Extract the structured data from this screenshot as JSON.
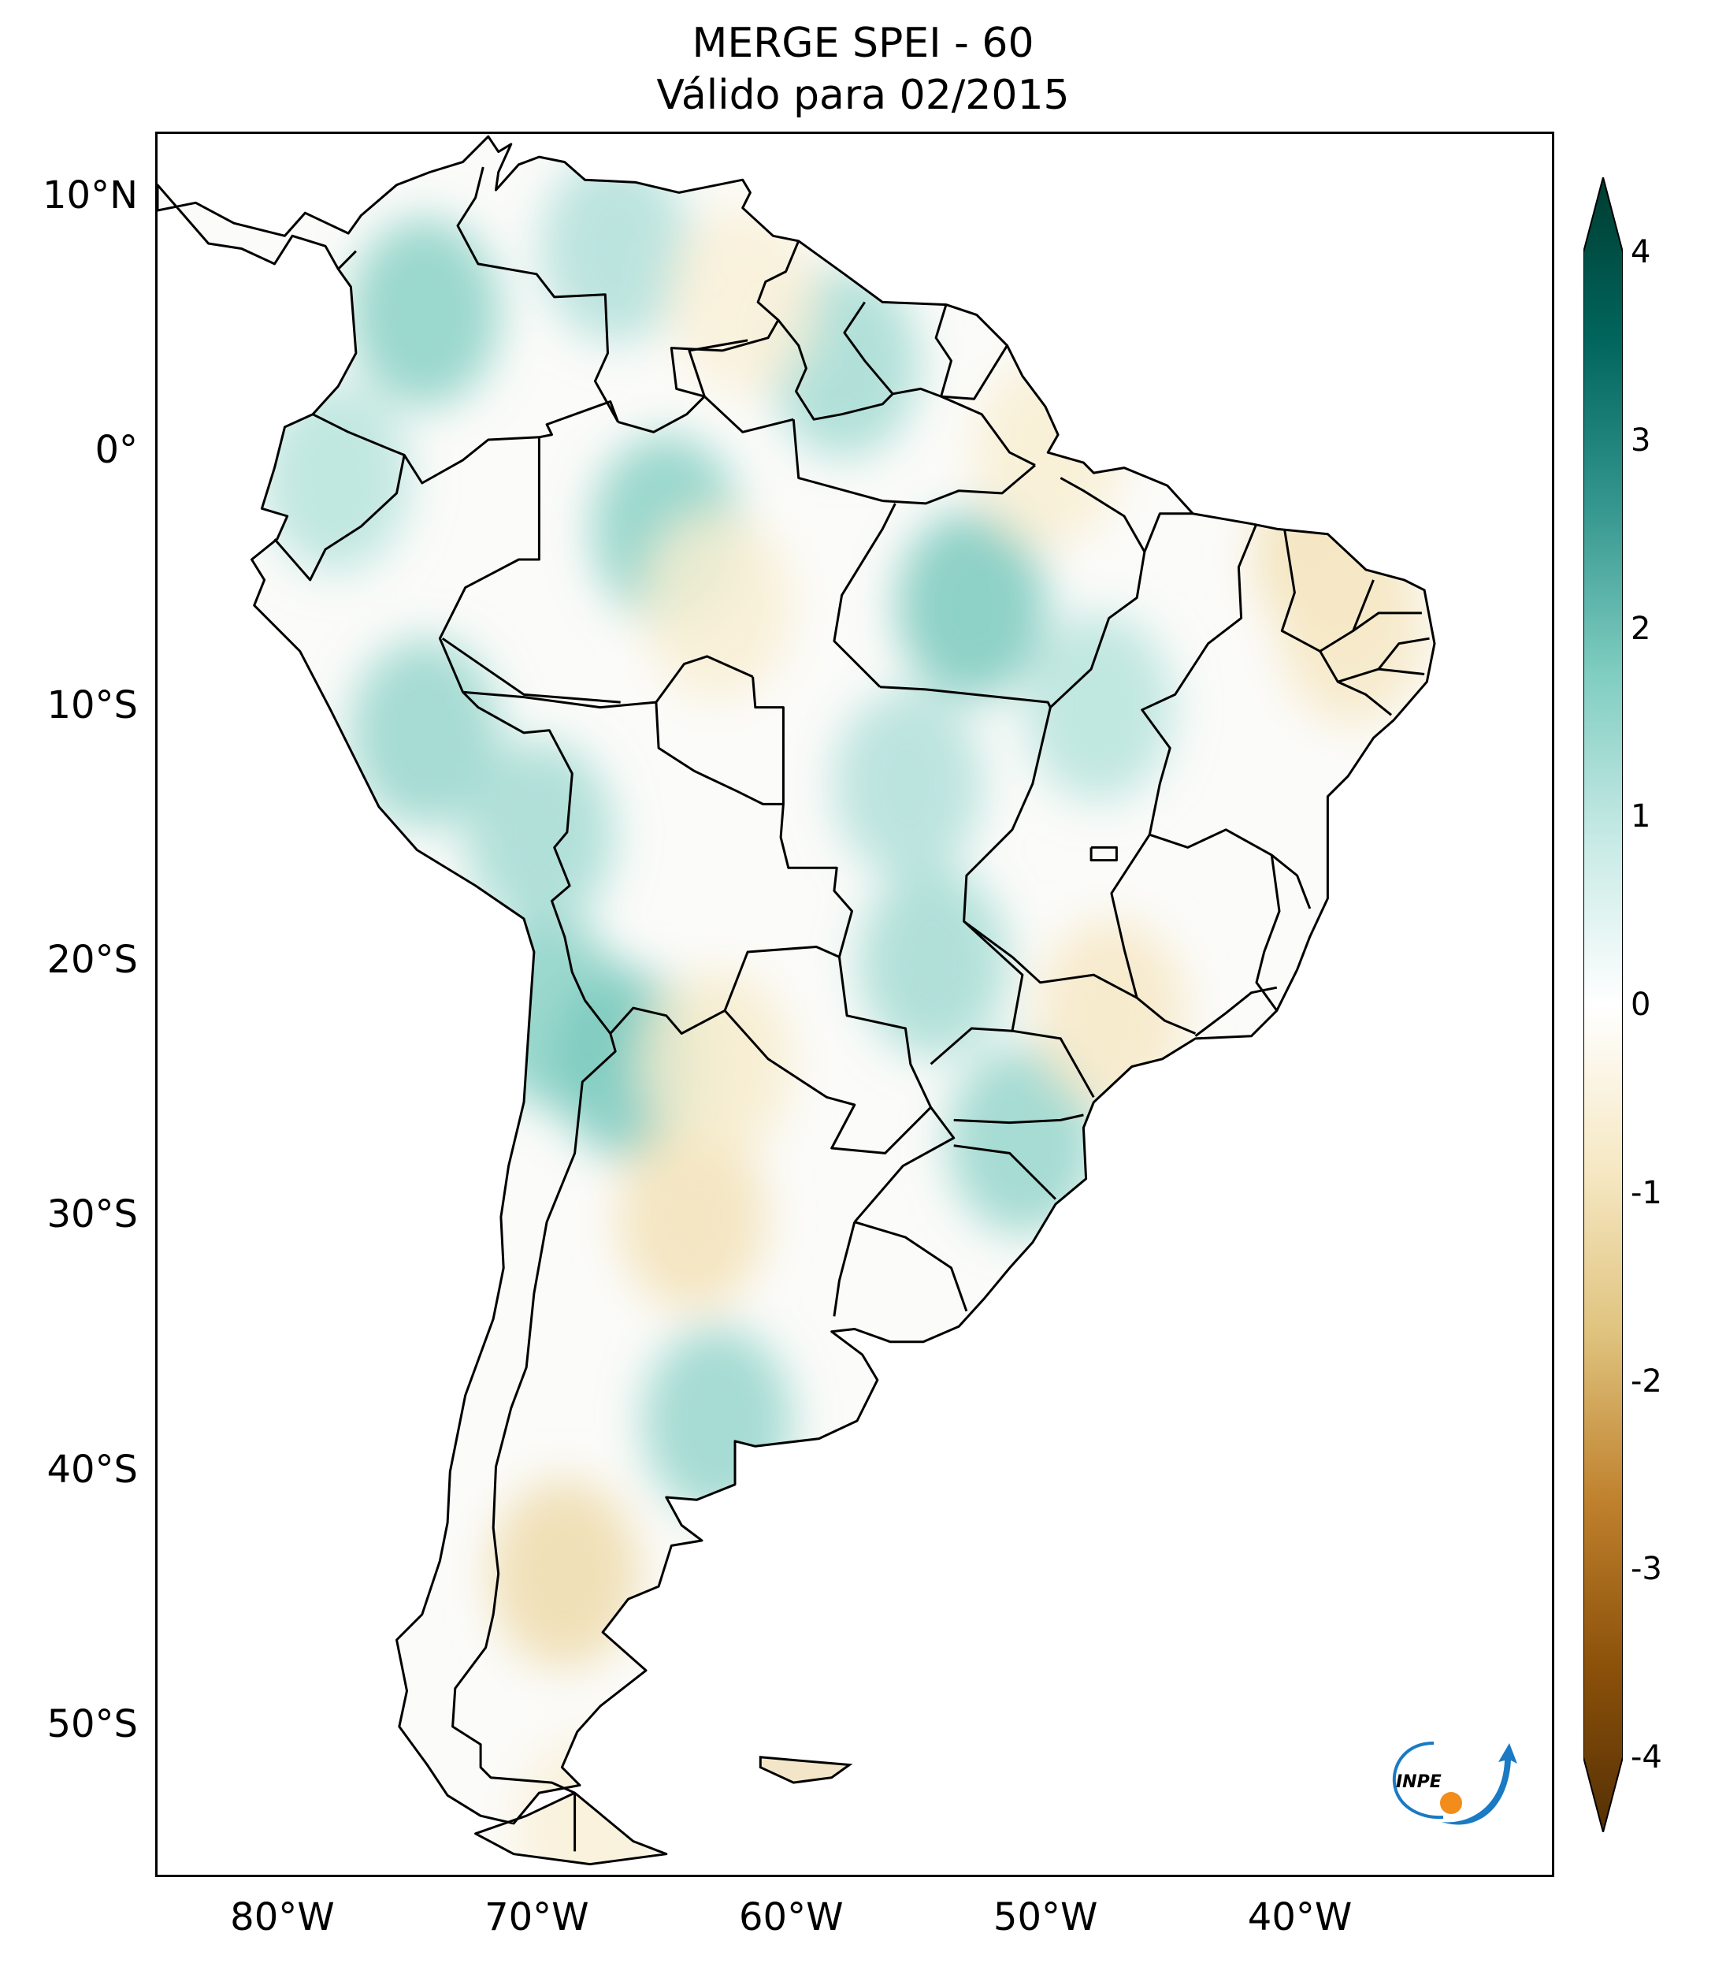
{
  "title": {
    "line1": "MERGE   SPEI - 60",
    "line2": "Válido para 02/2015"
  },
  "map": {
    "region": "South America",
    "projection": "PlateCarree",
    "extent": {
      "lon": [
        -85,
        -30
      ],
      "lat": [
        -56,
        12.5
      ]
    },
    "lat_ticks": [
      {
        "value": 10,
        "label": "10°N"
      },
      {
        "value": 0,
        "label": "0°"
      },
      {
        "value": -10,
        "label": "10°S"
      },
      {
        "value": -20,
        "label": "20°S"
      },
      {
        "value": -30,
        "label": "30°S"
      },
      {
        "value": -40,
        "label": "40°S"
      },
      {
        "value": -50,
        "label": "50°S"
      }
    ],
    "lon_ticks": [
      {
        "value": -80,
        "label": "80°W"
      },
      {
        "value": -70,
        "label": "70°W"
      },
      {
        "value": -60,
        "label": "60°W"
      },
      {
        "value": -50,
        "label": "50°W"
      },
      {
        "value": -40,
        "label": "40°W"
      }
    ],
    "field": "SPEI-60",
    "wet_anomalies": [
      {
        "name": "Colombia Andes",
        "lon": -74.5,
        "lat": 5.5,
        "value": 2.0
      },
      {
        "name": "Venezuela north",
        "lon": -67,
        "lat": 8,
        "value": 1.4
      },
      {
        "name": "Ecuador",
        "lon": -78,
        "lat": -1,
        "value": 1.3
      },
      {
        "name": "Peru central",
        "lon": -74.5,
        "lat": -11,
        "value": 1.8
      },
      {
        "name": "Peru south / Bolivia",
        "lon": -70,
        "lat": -15,
        "value": 1.6
      },
      {
        "name": "Amazonas north",
        "lon": -65,
        "lat": -3,
        "value": 2.0
      },
      {
        "name": "Para central",
        "lon": -53,
        "lat": -6,
        "value": 2.2
      },
      {
        "name": "Guyanas",
        "lon": -58,
        "lat": 3.5,
        "value": 1.6
      },
      {
        "name": "Mato Grosso",
        "lon": -55.5,
        "lat": -13,
        "value": 1.4
      },
      {
        "name": "Chile north / Atacama",
        "lon": -69.5,
        "lat": -22,
        "value": 2.0
      },
      {
        "name": "NW Argentina",
        "lon": -66.5,
        "lat": -24,
        "value": 2.2
      },
      {
        "name": "Mato Grosso do Sul",
        "lon": -54.5,
        "lat": -20,
        "value": 1.6
      },
      {
        "name": "Santa Catarina / Parana",
        "lon": -51,
        "lat": -27,
        "value": 1.8
      },
      {
        "name": "Buenos Aires south",
        "lon": -63,
        "lat": -38,
        "value": 1.8
      },
      {
        "name": "Tocantins",
        "lon": -48,
        "lat": -10,
        "value": 1.3
      }
    ],
    "dry_anomalies": [
      {
        "name": "Northeast Brazil coast",
        "lon": -39,
        "lat": -4,
        "value": -1.2
      },
      {
        "name": "Ceara / Pernambuco",
        "lon": -38,
        "lat": -7,
        "value": -1.0
      },
      {
        "name": "Sao Paulo",
        "lon": -47.5,
        "lat": -22,
        "value": -1.0
      },
      {
        "name": "Central Argentina",
        "lon": -64,
        "lat": -30,
        "value": -1.2
      },
      {
        "name": "Chaco",
        "lon": -63,
        "lat": -24,
        "value": -0.9
      },
      {
        "name": "Patagonia",
        "lon": -69,
        "lat": -44,
        "value": -1.4
      },
      {
        "name": "Amazonas south",
        "lon": -63,
        "lat": -6,
        "value": -0.8
      },
      {
        "name": "Amapa / Para north",
        "lon": -50,
        "lat": 0,
        "value": -0.8
      },
      {
        "name": "Tierra del Fuego",
        "lon": -68,
        "lat": -54,
        "value": -0.7
      },
      {
        "name": "Venezuela south",
        "lon": -62,
        "lat": 6,
        "value": -0.7
      }
    ]
  },
  "colorbar": {
    "label_ticks": [
      "4",
      "3",
      "2",
      "1",
      "0",
      "-1",
      "-2",
      "-3",
      "-4"
    ],
    "min": -4,
    "max": 4,
    "colormap": "BrBG",
    "stops": [
      "#543005",
      "#8c510a",
      "#bf812d",
      "#dfc27d",
      "#f6e8c3",
      "#ffffff",
      "#c7eae5",
      "#80cdc1",
      "#35978f",
      "#01665e",
      "#003c30"
    ]
  },
  "logo": {
    "text": "INPE",
    "color_blue": "#1a7ac4",
    "color_orange": "#f28c1a"
  }
}
